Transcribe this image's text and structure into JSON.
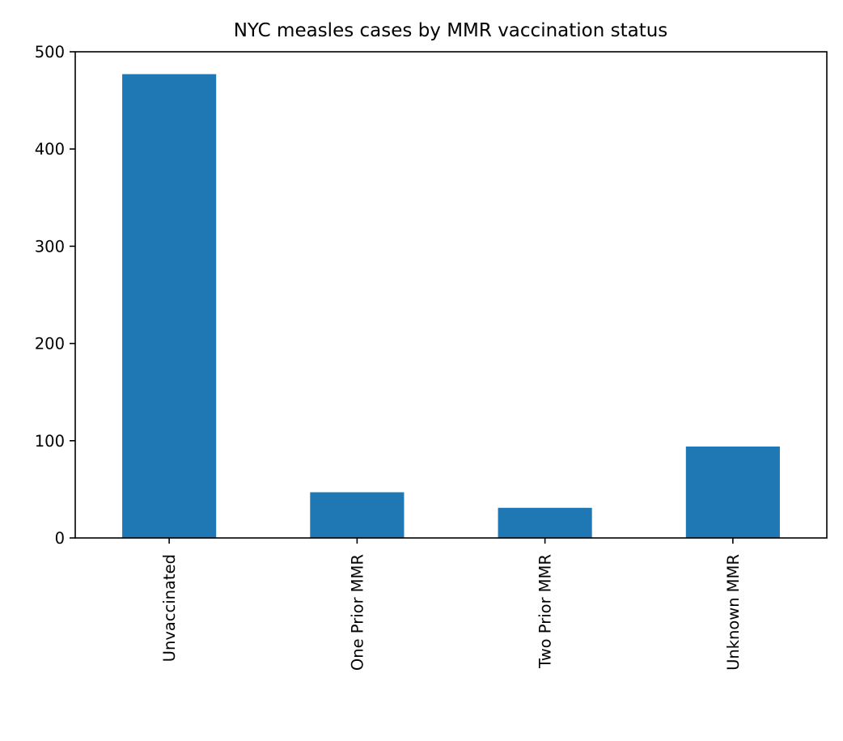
{
  "chart_data": {
    "type": "bar",
    "title": "NYC measles cases by MMR vaccination status",
    "xlabel": "",
    "ylabel": "",
    "categories": [
      "Unvaccinated",
      "One Prior MMR",
      "Two Prior MMR",
      "Unknown MMR"
    ],
    "values": [
      477,
      47,
      31,
      94
    ],
    "ylim": [
      0,
      500
    ],
    "yticks": [
      0,
      100,
      200,
      300,
      400,
      500
    ],
    "bar_color": "#1f77b4",
    "grid": false,
    "legend": "none"
  }
}
